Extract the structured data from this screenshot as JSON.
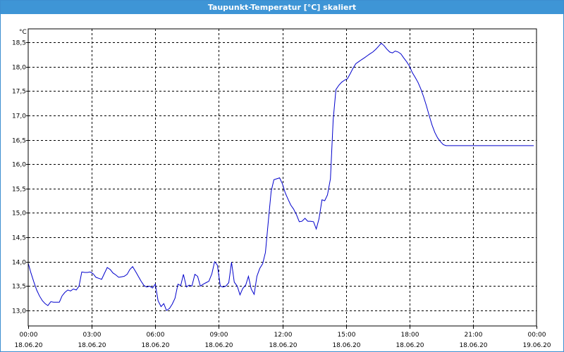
{
  "window": {
    "title": "Taupunkt-Temperatur [°C] skaliert"
  },
  "chart_data": {
    "type": "line",
    "title": "Taupunkt-Temperatur [°C] skaliert",
    "ylabel": "°C",
    "xlabel": "",
    "ylim": [
      12.8,
      18.6
    ],
    "xlim": [
      0,
      24
    ],
    "grid": true,
    "y_ticks": [
      "18,5",
      "18,0",
      "17,5",
      "17,0",
      "16,5",
      "16,0",
      "15,5",
      "15,0",
      "14,5",
      "14,0",
      "13,5",
      "13,0"
    ],
    "y_tick_values": [
      18.5,
      18.0,
      17.5,
      17.0,
      16.5,
      16.0,
      15.5,
      15.0,
      14.5,
      14.0,
      13.5,
      13.0
    ],
    "x_ticks": [
      {
        "time": "00:00",
        "date": "18.06.20"
      },
      {
        "time": "03:00",
        "date": "18.06.20"
      },
      {
        "time": "06:00",
        "date": "18.06.20"
      },
      {
        "time": "09:00",
        "date": "18.06.20"
      },
      {
        "time": "12:00",
        "date": "18.06.20"
      },
      {
        "time": "15:00",
        "date": "18.06.20"
      },
      {
        "time": "18:00",
        "date": "18.06.20"
      },
      {
        "time": "21:00",
        "date": "18.06.20"
      },
      {
        "time": "00:00",
        "date": "19.06.20"
      }
    ],
    "x_tick_hours": [
      0,
      3,
      6,
      9,
      12,
      15,
      18,
      21,
      24
    ],
    "series": [
      {
        "color": "#0000cc",
        "x": [
          0.0,
          0.13,
          0.27,
          0.4,
          0.53,
          0.67,
          0.8,
          0.93,
          1.07,
          1.2,
          1.33,
          1.47,
          1.6,
          1.73,
          1.87,
          2.0,
          2.13,
          2.27,
          2.4,
          2.53,
          2.67,
          2.8,
          2.93,
          3.07,
          3.2,
          3.33,
          3.47,
          3.6,
          3.73,
          3.87,
          4.0,
          4.13,
          4.27,
          4.4,
          4.53,
          4.67,
          4.8,
          4.93,
          5.07,
          5.2,
          5.33,
          5.47,
          5.6,
          5.73,
          5.87,
          6.0,
          6.13,
          6.27,
          6.4,
          6.53,
          6.67,
          6.8,
          6.93,
          7.07,
          7.2,
          7.33,
          7.47,
          7.6,
          7.73,
          7.87,
          8.0,
          8.13,
          8.27,
          8.4,
          8.53,
          8.67,
          8.8,
          8.93,
          9.07,
          9.2,
          9.33,
          9.47,
          9.6,
          9.73,
          9.87,
          10.0,
          10.13,
          10.27,
          10.4,
          10.53,
          10.67,
          10.8,
          10.93,
          11.07,
          11.2,
          11.33,
          11.47,
          11.6,
          11.73,
          11.87,
          12.0,
          12.13,
          12.27,
          12.4,
          12.53,
          12.67,
          12.8,
          12.93,
          13.07,
          13.2,
          13.33,
          13.47,
          13.6,
          13.73,
          13.87,
          14.0,
          14.13,
          14.27,
          14.4,
          14.53,
          14.67,
          14.8,
          14.93,
          15.07,
          15.2,
          15.33,
          15.47,
          15.6,
          15.73,
          15.87,
          16.0,
          16.13,
          16.27,
          16.4,
          16.53,
          16.67,
          16.8,
          16.93,
          17.07,
          17.2,
          17.33,
          17.47,
          17.6,
          17.73,
          17.87,
          18.0,
          18.13,
          18.27,
          18.4,
          18.53,
          18.67,
          18.8,
          18.93,
          19.07,
          19.2,
          19.33,
          19.47,
          19.6,
          19.73,
          19.87,
          20.0,
          20.13,
          20.27,
          20.4,
          20.53,
          20.67,
          20.8,
          20.93,
          21.07,
          21.2,
          21.33,
          21.47,
          21.6,
          21.73,
          21.87,
          22.0,
          22.13,
          22.27,
          22.4,
          22.53,
          22.67,
          22.8,
          22.93,
          23.07,
          23.2,
          23.33,
          23.47,
          23.6,
          23.73,
          23.87
        ],
        "y": [
          13.97,
          13.77,
          13.58,
          13.42,
          13.3,
          13.2,
          13.14,
          13.1,
          13.18,
          13.17,
          13.17,
          13.17,
          13.3,
          13.37,
          13.42,
          13.4,
          13.44,
          13.42,
          13.5,
          13.79,
          13.78,
          13.78,
          13.79,
          13.75,
          13.68,
          13.66,
          13.64,
          13.76,
          13.88,
          13.84,
          13.77,
          13.73,
          13.68,
          13.69,
          13.7,
          13.74,
          13.84,
          13.9,
          13.8,
          13.7,
          13.6,
          13.51,
          13.48,
          13.5,
          13.46,
          13.54,
          13.2,
          13.08,
          13.14,
          13.0,
          13.04,
          13.13,
          13.25,
          13.54,
          13.51,
          13.74,
          13.48,
          13.52,
          13.5,
          13.74,
          13.7,
          13.5,
          13.54,
          13.57,
          13.6,
          13.75,
          14.0,
          13.93,
          13.5,
          13.48,
          13.5,
          13.57,
          13.99,
          13.58,
          13.5,
          13.32,
          13.45,
          13.52,
          13.7,
          13.44,
          13.33,
          13.7,
          13.86,
          13.96,
          14.19,
          14.8,
          15.44,
          15.68,
          15.7,
          15.72,
          15.6,
          15.42,
          15.28,
          15.16,
          15.08,
          14.96,
          14.82,
          14.83,
          14.89,
          14.83,
          14.83,
          14.82,
          14.67,
          14.88,
          15.27,
          15.25,
          15.37,
          15.7,
          16.91,
          17.53,
          17.62,
          17.68,
          17.72,
          17.75,
          17.85,
          17.96,
          18.06,
          18.1,
          18.14,
          18.18,
          18.22,
          18.26,
          18.3,
          18.35,
          18.41,
          18.48,
          18.43,
          18.36,
          18.3,
          18.28,
          18.32,
          18.3,
          18.26,
          18.18,
          18.1,
          18.01,
          17.88,
          17.78,
          17.68,
          17.55,
          17.38,
          17.2,
          17.0,
          16.8,
          16.65,
          16.54,
          16.46,
          16.4,
          16.38,
          16.38,
          16.38,
          16.38,
          16.38,
          16.38,
          16.38,
          16.38,
          16.38,
          16.38,
          16.38,
          16.38,
          16.38,
          16.38,
          16.38,
          16.38,
          16.38,
          16.38,
          16.38,
          16.38,
          16.38,
          16.38,
          16.38,
          16.38,
          16.38,
          16.38,
          16.38,
          16.38,
          16.38,
          16.38,
          16.38,
          16.38
        ]
      }
    ]
  }
}
